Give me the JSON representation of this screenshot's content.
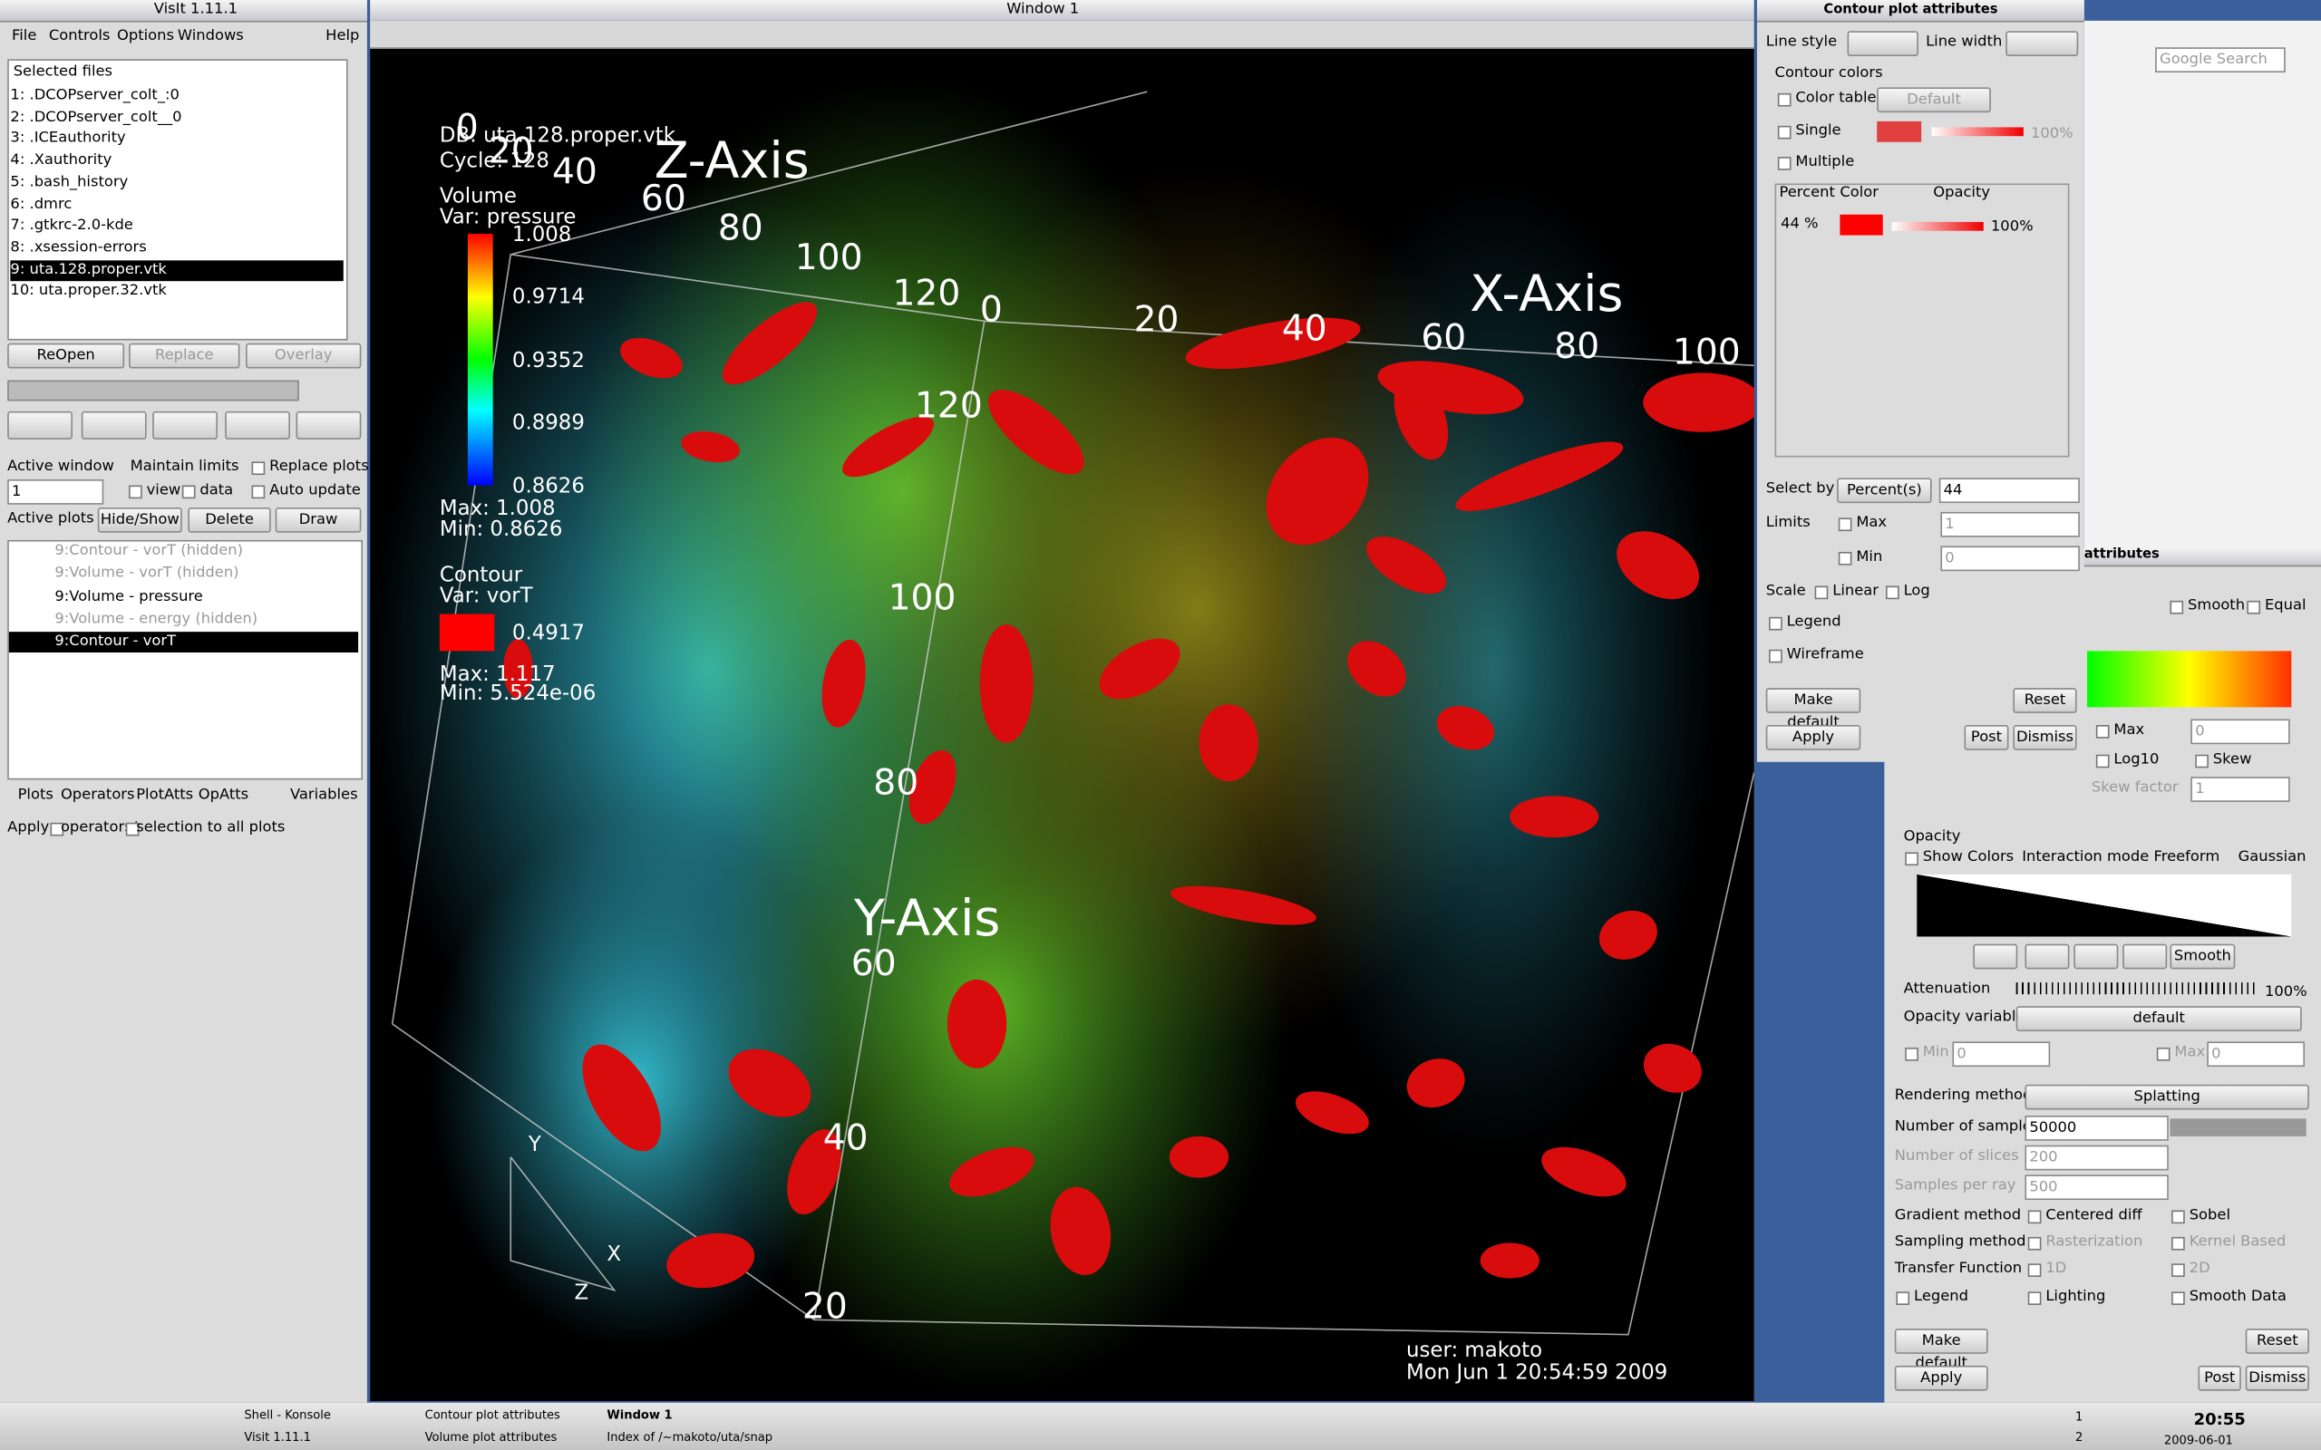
{
  "main_window": {
    "title": "VisIt 1.11.1",
    "menu": [
      "File",
      "Controls",
      "Options",
      "Windows",
      "Help"
    ],
    "selected_files_label": "Selected files",
    "files": [
      "1: .DCOPserver_colt_:0",
      "2: .DCOPserver_colt__0",
      "3: .ICEauthority",
      "4: .Xauthority",
      "5: .bash_history",
      "6: .dmrc",
      "7: .gtkrc-2.0-kde",
      "8: .xsession-errors",
      "9: uta.128.proper.vtk",
      "10: uta.proper.32.vtk"
    ],
    "file_buttons": [
      "ReOpen",
      "Replace",
      "Overlay"
    ],
    "active_window_label": "Active window",
    "active_window_value": "1",
    "maintain_limits": "Maintain limits",
    "view": "view",
    "data": "data",
    "replace_plots": "Replace plots",
    "auto_update": "Auto update",
    "active_plots_label": "Active plots",
    "plot_buttons": [
      "Hide/Show",
      "Delete",
      "Draw"
    ],
    "plots": [
      "9:Contour - vorT (hidden)",
      "9:Volume - vorT (hidden)",
      "9:Volume - pressure",
      "9:Volume - energy (hidden)",
      "9:Contour - vorT"
    ],
    "tabs": [
      "Plots",
      "Operators",
      "PlotAtts",
      "OpAtts",
      "Variables"
    ],
    "apply": [
      "Apply",
      "operators/",
      "selection to all plots"
    ]
  },
  "viz_window": {
    "title": "Window 1",
    "db": "DB: uta.128.proper.vtk",
    "cycle": "Cycle: 128",
    "volume_legend": {
      "title": "Volume",
      "var": "Var: pressure",
      "labels": [
        "1.008",
        "0.9714",
        "0.9352",
        "0.8989",
        "0.8626"
      ],
      "max": "Max: 1.008",
      "min": "Min: 0.8626"
    },
    "contour_legend": {
      "title": "Contour",
      "var": "Var: vorT",
      "label": "0.4917",
      "max": "Max: 1.117",
      "min": "Min: 5.524e-06"
    },
    "axes": {
      "z_title": "Z-Axis",
      "x_title": "X-Axis",
      "y_title": "Y-Axis",
      "z_ticks": [
        "0",
        "20",
        "40",
        "60",
        "80",
        "100",
        "120"
      ],
      "x_ticks": [
        "0",
        "20",
        "40",
        "60",
        "80",
        "100"
      ],
      "y_ticks": [
        "120",
        "100",
        "80",
        "60",
        "40",
        "20"
      ],
      "triad": [
        "Y",
        "X",
        "Z"
      ]
    },
    "user": "user: makoto",
    "date": "Mon Jun  1 20:54:59 2009"
  },
  "contour_panel": {
    "title": "Contour plot attributes",
    "line_style": "Line style",
    "line_width": "Line width",
    "contour_colors": "Contour colors",
    "color_table": "Color table",
    "default": "Default",
    "single": "Single",
    "single_opacity": "100%",
    "multiple": "Multiple",
    "table_header": [
      "Percent",
      "Color",
      "Opacity"
    ],
    "row_percent": "44 %",
    "row_opacity": "100%",
    "select_by": "Select by",
    "select_by_value": "Percent(s)",
    "select_by_input": "44",
    "limits": "Limits",
    "max": "Max",
    "max_value": "1",
    "min": "Min",
    "min_value": "0",
    "scale": "Scale",
    "linear": "Linear",
    "log": "Log",
    "legend": "Legend",
    "wireframe": "Wireframe",
    "make_default": "Make default",
    "reset": "Reset",
    "apply": "Apply",
    "post": "Post",
    "dismiss": "Dismiss"
  },
  "browser": {
    "search": "Google Search"
  },
  "volume_panel": {
    "title": "attributes",
    "smooth": "Smooth",
    "equal": "Equal",
    "max": "Max",
    "max_value": "0",
    "log10": "Log10",
    "skew": "Skew",
    "skew_factor": "Skew factor",
    "skew_value": "1",
    "opacity": "Opacity",
    "show_colors": "Show Colors",
    "interaction_mode": "Interaction mode",
    "freeform": "Freeform",
    "gaussian": "Gaussian",
    "smooth_button": "Smooth",
    "attenuation": "Attenuation",
    "attenuation_value": "100%",
    "opacity_variable": "Opacity variable",
    "opacity_variable_value": "default",
    "min": "Min",
    "min_value": "0",
    "max2": "Max",
    "max2_value": "0",
    "rendering_method": "Rendering method",
    "rendering_value": "Splatting",
    "num_samples": "Number of samples",
    "num_samples_value": "50000",
    "num_slices": "Number of slices",
    "num_slices_value": "200",
    "samples_per_ray": "Samples per ray",
    "samples_per_ray_value": "500",
    "gradient_method": "Gradient method",
    "centered_diff": "Centered diff",
    "sobel": "Sobel",
    "sampling_method": "Sampling method",
    "rasterization": "Rasterization",
    "kernel_based": "Kernel Based",
    "transfer_function": "Transfer Function",
    "tf_1d": "1D",
    "tf_2d": "2D",
    "legend": "Legend",
    "lighting": "Lighting",
    "smooth_data": "Smooth Data",
    "make_default": "Make default",
    "reset": "Reset",
    "apply": "Apply",
    "post": "Post",
    "dismiss": "Dismiss"
  },
  "taskbar": {
    "items": [
      "Shell - Konsole",
      "Visit 1.11.1",
      "Contour plot attributes",
      "Volume plot attributes",
      "Window 1",
      "Index of /~makoto/uta/snap"
    ],
    "desktops": [
      "1",
      "2"
    ],
    "clock": "20:55",
    "date": "2009-06-01"
  }
}
